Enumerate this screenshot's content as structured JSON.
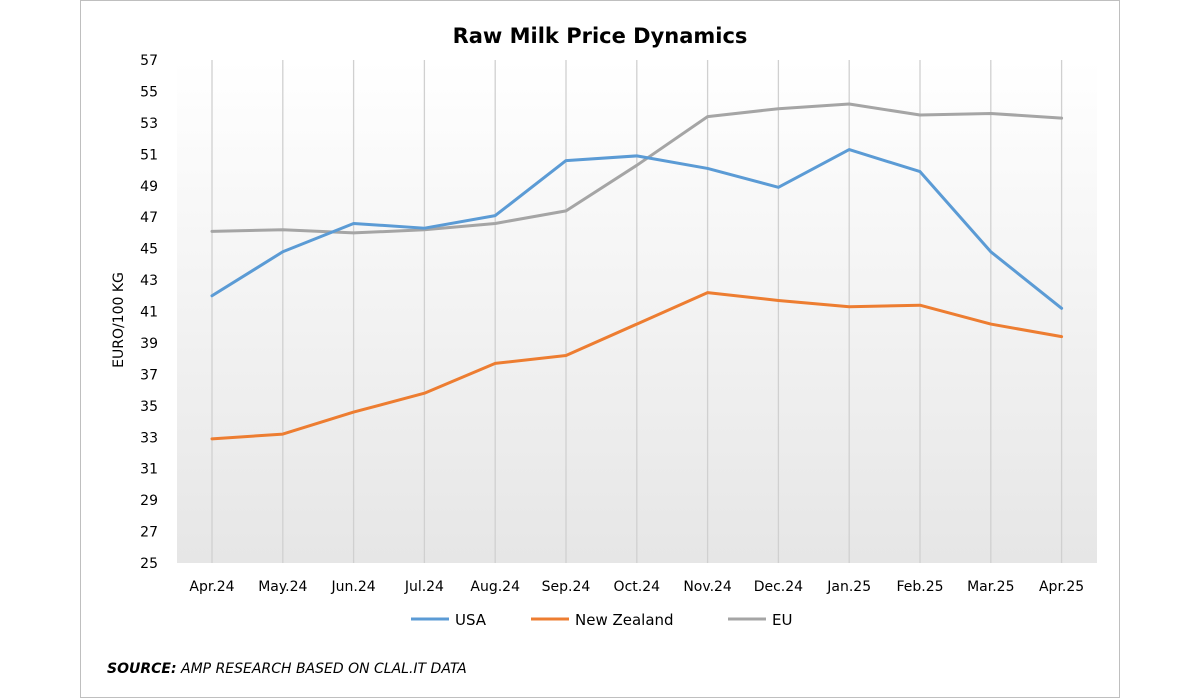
{
  "chart_data": {
    "type": "line",
    "title": "Raw Milk Price Dynamics",
    "ylabel": "EURO/100 KG",
    "xlabel": "",
    "ylim": [
      25,
      57
    ],
    "ytick_step": 2,
    "grid": "vertical",
    "legend_position": "bottom",
    "categories": [
      "Apr.24",
      "May.24",
      "Jun.24",
      "Jul.24",
      "Aug.24",
      "Sep.24",
      "Oct.24",
      "Nov.24",
      "Dec.24",
      "Jan.25",
      "Feb.25",
      "Mar.25",
      "Apr.25"
    ],
    "series": [
      {
        "name": "USA",
        "color": "#5b9bd5",
        "values": [
          42.0,
          44.8,
          46.6,
          46.3,
          47.1,
          50.6,
          50.9,
          50.1,
          48.9,
          51.3,
          49.9,
          44.8,
          41.2
        ]
      },
      {
        "name": "New Zealand",
        "color": "#ed7d31",
        "values": [
          32.9,
          33.2,
          34.6,
          35.8,
          37.7,
          38.2,
          40.2,
          42.2,
          41.7,
          41.3,
          41.4,
          40.2,
          39.4
        ]
      },
      {
        "name": "EU",
        "color": "#a5a5a5",
        "values": [
          46.1,
          46.2,
          46.0,
          46.2,
          46.6,
          47.4,
          50.3,
          53.4,
          53.9,
          54.2,
          53.5,
          53.6,
          53.3
        ]
      }
    ]
  },
  "source": {
    "label": "SOURCE:",
    "text": " AMP RESEARCH BASED ON CLAL.IT DATA"
  }
}
